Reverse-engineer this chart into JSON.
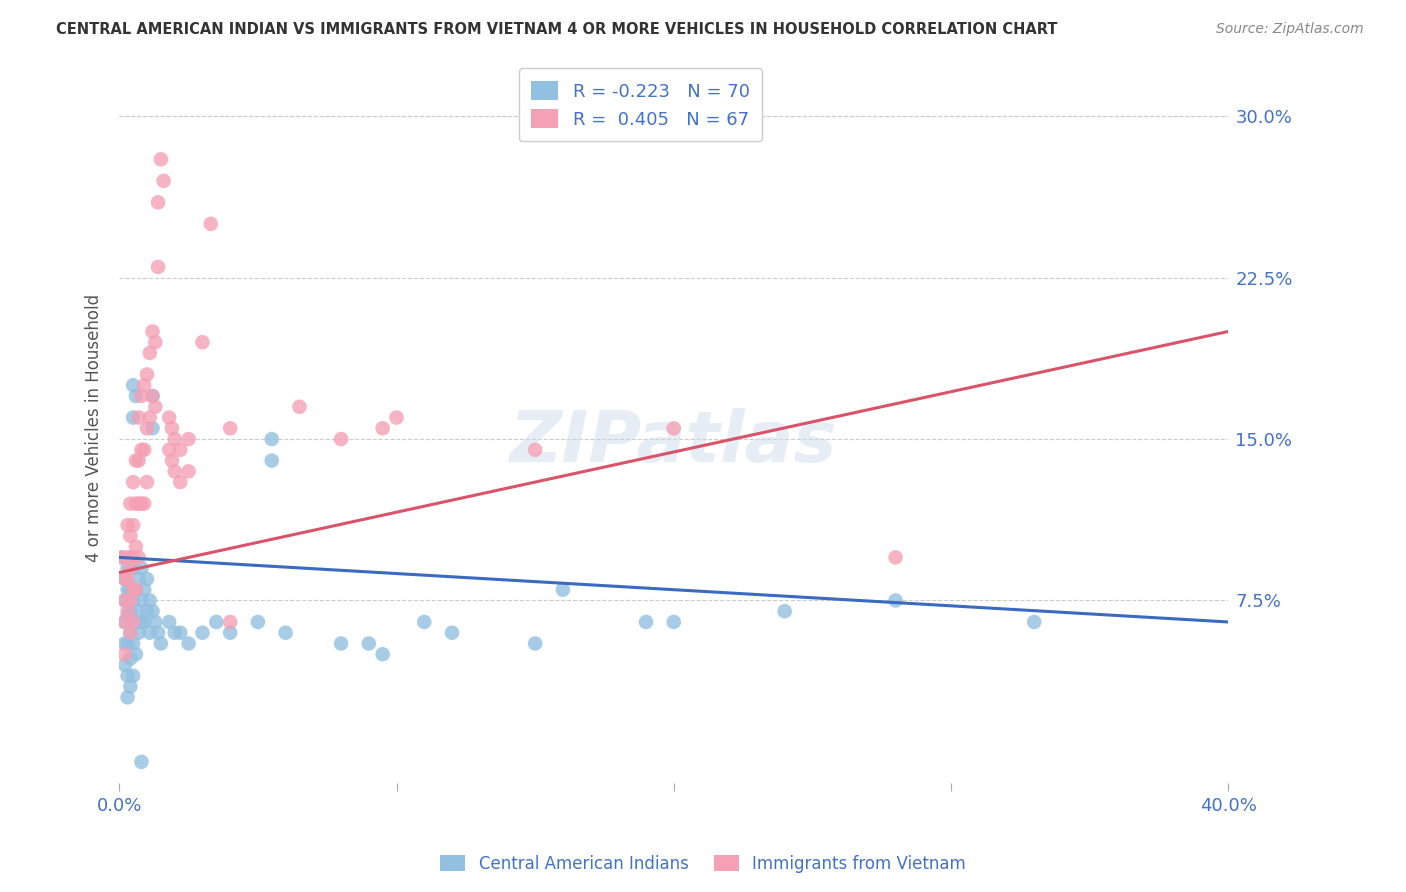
{
  "title": "CENTRAL AMERICAN INDIAN VS IMMIGRANTS FROM VIETNAM 4 OR MORE VEHICLES IN HOUSEHOLD CORRELATION CHART",
  "source": "Source: ZipAtlas.com",
  "ylabel": "4 or more Vehicles in Household",
  "ytick_labels": [
    "7.5%",
    "15.0%",
    "22.5%",
    "30.0%"
  ],
  "ytick_values": [
    0.075,
    0.15,
    0.225,
    0.3
  ],
  "xlim": [
    0.0,
    0.4
  ],
  "ylim": [
    -0.01,
    0.32
  ],
  "legend1_r": "-0.223",
  "legend1_n": "70",
  "legend2_r": "0.405",
  "legend2_n": "67",
  "legend_label1": "Central American Indians",
  "legend_label2": "Immigrants from Vietnam",
  "color_blue": "#92c0e0",
  "color_pink": "#f4a0b5",
  "line_blue": "#3a6bbf",
  "line_pink": "#d9546a",
  "watermark": "ZIPatlas",
  "title_color": "#444444",
  "axis_label_color": "#4472c4",
  "blue_scatter": [
    [
      0.001,
      0.095
    ],
    [
      0.002,
      0.085
    ],
    [
      0.002,
      0.075
    ],
    [
      0.002,
      0.065
    ],
    [
      0.002,
      0.055
    ],
    [
      0.002,
      0.045
    ],
    [
      0.003,
      0.09
    ],
    [
      0.003,
      0.08
    ],
    [
      0.003,
      0.068
    ],
    [
      0.003,
      0.055
    ],
    [
      0.003,
      0.04
    ],
    [
      0.003,
      0.03
    ],
    [
      0.004,
      0.095
    ],
    [
      0.004,
      0.08
    ],
    [
      0.004,
      0.07
    ],
    [
      0.004,
      0.06
    ],
    [
      0.004,
      0.048
    ],
    [
      0.004,
      0.035
    ],
    [
      0.005,
      0.175
    ],
    [
      0.005,
      0.16
    ],
    [
      0.005,
      0.09
    ],
    [
      0.005,
      0.075
    ],
    [
      0.005,
      0.055
    ],
    [
      0.005,
      0.04
    ],
    [
      0.006,
      0.17
    ],
    [
      0.006,
      0.08
    ],
    [
      0.006,
      0.065
    ],
    [
      0.006,
      0.05
    ],
    [
      0.007,
      0.085
    ],
    [
      0.007,
      0.07
    ],
    [
      0.007,
      0.06
    ],
    [
      0.008,
      0.09
    ],
    [
      0.008,
      0.075
    ],
    [
      0.008,
      0.065
    ],
    [
      0.009,
      0.08
    ],
    [
      0.009,
      0.065
    ],
    [
      0.01,
      0.085
    ],
    [
      0.01,
      0.07
    ],
    [
      0.011,
      0.075
    ],
    [
      0.011,
      0.06
    ],
    [
      0.012,
      0.17
    ],
    [
      0.012,
      0.155
    ],
    [
      0.012,
      0.07
    ],
    [
      0.013,
      0.065
    ],
    [
      0.014,
      0.06
    ],
    [
      0.015,
      0.055
    ],
    [
      0.018,
      0.065
    ],
    [
      0.02,
      0.06
    ],
    [
      0.022,
      0.06
    ],
    [
      0.025,
      0.055
    ],
    [
      0.03,
      0.06
    ],
    [
      0.035,
      0.065
    ],
    [
      0.04,
      0.06
    ],
    [
      0.05,
      0.065
    ],
    [
      0.055,
      0.15
    ],
    [
      0.055,
      0.14
    ],
    [
      0.06,
      0.06
    ],
    [
      0.08,
      0.055
    ],
    [
      0.09,
      0.055
    ],
    [
      0.095,
      0.05
    ],
    [
      0.11,
      0.065
    ],
    [
      0.12,
      0.06
    ],
    [
      0.15,
      0.055
    ],
    [
      0.16,
      0.08
    ],
    [
      0.19,
      0.065
    ],
    [
      0.2,
      0.065
    ],
    [
      0.24,
      0.07
    ],
    [
      0.28,
      0.075
    ],
    [
      0.33,
      0.065
    ],
    [
      0.008,
      0.0
    ]
  ],
  "pink_scatter": [
    [
      0.001,
      0.095
    ],
    [
      0.002,
      0.085
    ],
    [
      0.002,
      0.075
    ],
    [
      0.002,
      0.065
    ],
    [
      0.002,
      0.05
    ],
    [
      0.003,
      0.095
    ],
    [
      0.003,
      0.085
    ],
    [
      0.003,
      0.11
    ],
    [
      0.003,
      0.07
    ],
    [
      0.004,
      0.12
    ],
    [
      0.004,
      0.105
    ],
    [
      0.004,
      0.09
    ],
    [
      0.004,
      0.075
    ],
    [
      0.004,
      0.06
    ],
    [
      0.005,
      0.13
    ],
    [
      0.005,
      0.11
    ],
    [
      0.005,
      0.095
    ],
    [
      0.005,
      0.08
    ],
    [
      0.005,
      0.065
    ],
    [
      0.006,
      0.14
    ],
    [
      0.006,
      0.12
    ],
    [
      0.006,
      0.1
    ],
    [
      0.006,
      0.08
    ],
    [
      0.007,
      0.16
    ],
    [
      0.007,
      0.14
    ],
    [
      0.007,
      0.12
    ],
    [
      0.007,
      0.095
    ],
    [
      0.008,
      0.17
    ],
    [
      0.008,
      0.145
    ],
    [
      0.008,
      0.12
    ],
    [
      0.009,
      0.175
    ],
    [
      0.009,
      0.145
    ],
    [
      0.009,
      0.12
    ],
    [
      0.01,
      0.18
    ],
    [
      0.01,
      0.155
    ],
    [
      0.01,
      0.13
    ],
    [
      0.011,
      0.19
    ],
    [
      0.011,
      0.16
    ],
    [
      0.012,
      0.2
    ],
    [
      0.012,
      0.17
    ],
    [
      0.013,
      0.195
    ],
    [
      0.013,
      0.165
    ],
    [
      0.014,
      0.26
    ],
    [
      0.014,
      0.23
    ],
    [
      0.015,
      0.28
    ],
    [
      0.016,
      0.27
    ],
    [
      0.018,
      0.16
    ],
    [
      0.018,
      0.145
    ],
    [
      0.019,
      0.155
    ],
    [
      0.019,
      0.14
    ],
    [
      0.02,
      0.15
    ],
    [
      0.02,
      0.135
    ],
    [
      0.022,
      0.145
    ],
    [
      0.022,
      0.13
    ],
    [
      0.025,
      0.15
    ],
    [
      0.025,
      0.135
    ],
    [
      0.03,
      0.195
    ],
    [
      0.033,
      0.25
    ],
    [
      0.04,
      0.155
    ],
    [
      0.04,
      0.065
    ],
    [
      0.065,
      0.165
    ],
    [
      0.08,
      0.15
    ],
    [
      0.095,
      0.155
    ],
    [
      0.1,
      0.16
    ],
    [
      0.15,
      0.145
    ],
    [
      0.2,
      0.155
    ],
    [
      0.28,
      0.095
    ]
  ]
}
